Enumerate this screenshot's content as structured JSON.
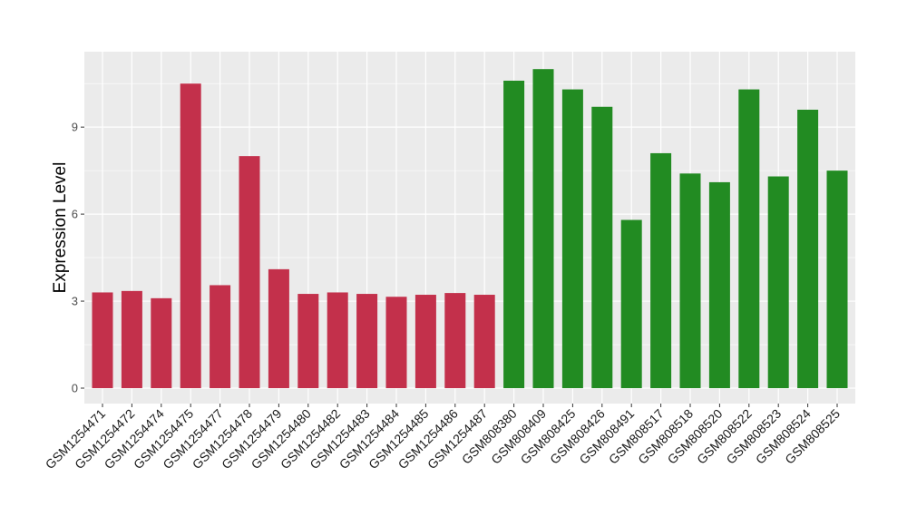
{
  "chart_data": {
    "type": "bar",
    "title": "",
    "xlabel": "",
    "ylabel": "Expression Level",
    "ylim": [
      0,
      11.6
    ],
    "yticks": [
      0,
      3,
      6,
      9
    ],
    "grid": true,
    "colors": {
      "group1": "#C3304B",
      "group2": "#228B22",
      "panel": "#EBEBEB",
      "gridline": "#FFFFFF"
    },
    "categories": [
      "GSM1254471",
      "GSM1254472",
      "GSM1254474",
      "GSM1254475",
      "GSM1254477",
      "GSM1254478",
      "GSM1254479",
      "GSM1254480",
      "GSM1254482",
      "GSM1254483",
      "GSM1254484",
      "GSM1254485",
      "GSM1254486",
      "GSM1254487",
      "GSM808380",
      "GSM808409",
      "GSM808425",
      "GSM808426",
      "GSM808491",
      "GSM808517",
      "GSM808518",
      "GSM808520",
      "GSM808522",
      "GSM808523",
      "GSM808524",
      "GSM808525"
    ],
    "values": [
      3.3,
      3.35,
      3.1,
      10.5,
      3.55,
      8.0,
      4.1,
      3.25,
      3.3,
      3.25,
      3.15,
      3.22,
      3.28,
      3.22,
      10.6,
      11.0,
      10.3,
      9.7,
      5.8,
      8.1,
      7.4,
      7.1,
      10.3,
      7.3,
      9.6,
      7.5
    ],
    "groups": [
      "group1",
      "group1",
      "group1",
      "group1",
      "group1",
      "group1",
      "group1",
      "group1",
      "group1",
      "group1",
      "group1",
      "group1",
      "group1",
      "group1",
      "group2",
      "group2",
      "group2",
      "group2",
      "group2",
      "group2",
      "group2",
      "group2",
      "group2",
      "group2",
      "group2",
      "group2"
    ]
  }
}
